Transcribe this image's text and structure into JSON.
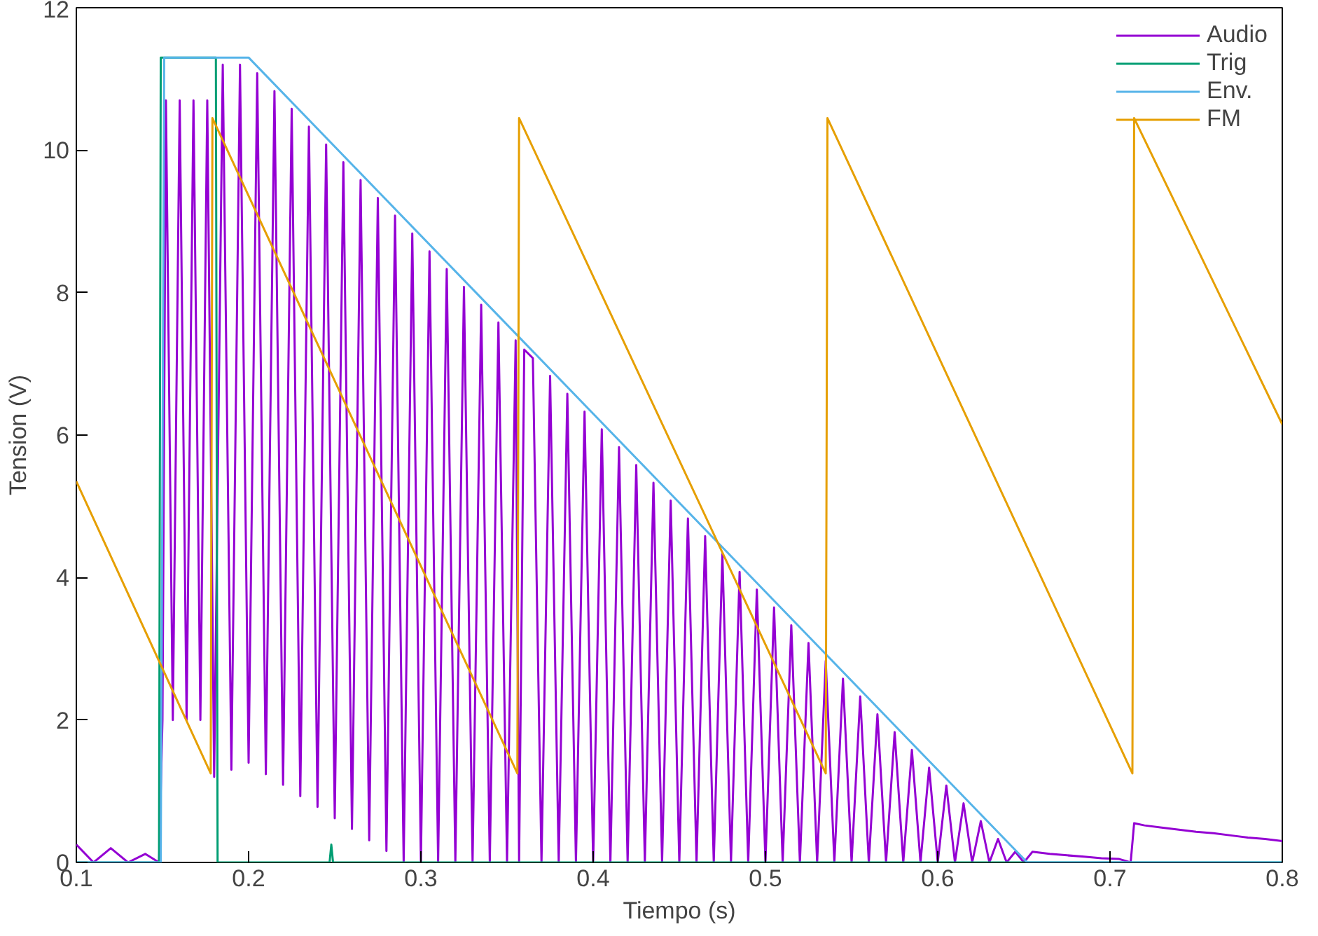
{
  "chart_data": {
    "type": "line",
    "xlabel": "Tiempo (s)",
    "ylabel": "Tension (V)",
    "xlim": [
      0.1,
      0.8
    ],
    "ylim": [
      0,
      12
    ],
    "xticks": [
      0.1,
      0.2,
      0.3,
      0.4,
      0.5,
      0.6,
      0.7,
      0.8
    ],
    "yticks": [
      0,
      2,
      4,
      6,
      8,
      10,
      12
    ],
    "grid": false,
    "legend": "top right",
    "marker": "none",
    "line_style": "solid",
    "series": [
      {
        "name": "Audio",
        "color": "#9400d3",
        "x": [
          0.1,
          0.11,
          0.12,
          0.13,
          0.14,
          0.148,
          0.15,
          0.152,
          0.156,
          0.16,
          0.164,
          0.168,
          0.172,
          0.176,
          0.18,
          0.185,
          0.19,
          0.195,
          0.2,
          0.205,
          0.21,
          0.215,
          0.22,
          0.225,
          0.23,
          0.235,
          0.24,
          0.245,
          0.25,
          0.255,
          0.26,
          0.265,
          0.27,
          0.275,
          0.28,
          0.285,
          0.29,
          0.295,
          0.3,
          0.305,
          0.31,
          0.315,
          0.32,
          0.325,
          0.33,
          0.335,
          0.34,
          0.345,
          0.35,
          0.355,
          0.357,
          0.36,
          0.365,
          0.37,
          0.375,
          0.38,
          0.385,
          0.39,
          0.395,
          0.4,
          0.405,
          0.41,
          0.415,
          0.42,
          0.425,
          0.43,
          0.435,
          0.44,
          0.445,
          0.45,
          0.455,
          0.46,
          0.465,
          0.47,
          0.475,
          0.48,
          0.485,
          0.49,
          0.495,
          0.5,
          0.505,
          0.51,
          0.515,
          0.52,
          0.525,
          0.53,
          0.535,
          0.54,
          0.545,
          0.55,
          0.555,
          0.56,
          0.565,
          0.57,
          0.575,
          0.58,
          0.585,
          0.59,
          0.595,
          0.6,
          0.605,
          0.61,
          0.615,
          0.62,
          0.625,
          0.63,
          0.635,
          0.64,
          0.645,
          0.65,
          0.655,
          0.665,
          0.675,
          0.685,
          0.695,
          0.705,
          0.712,
          0.714,
          0.72,
          0.73,
          0.74,
          0.75,
          0.76,
          0.77,
          0.78,
          0.79,
          0.8
        ],
        "values": [
          0.25,
          0,
          0.2,
          0,
          0.12,
          0,
          2.0,
          10.7,
          2.0,
          10.7,
          2.0,
          10.7,
          2.0,
          10.7,
          1.2,
          11.2,
          1.3,
          11.2,
          1.4,
          11.08,
          1.24,
          10.83,
          1.09,
          10.58,
          0.93,
          10.33,
          0.78,
          10.08,
          0.62,
          9.83,
          0.47,
          9.58,
          0.31,
          9.33,
          0.16,
          9.08,
          0,
          8.83,
          0,
          8.58,
          0,
          8.33,
          0,
          8.08,
          0,
          7.83,
          0,
          7.58,
          0,
          7.33,
          0,
          7.2,
          7.08,
          0,
          6.83,
          0,
          6.58,
          0,
          6.33,
          0,
          6.08,
          0,
          5.83,
          0,
          5.58,
          0,
          5.33,
          0,
          5.08,
          0,
          4.83,
          0,
          4.58,
          0,
          4.33,
          0,
          4.08,
          0,
          3.83,
          0,
          3.58,
          0,
          3.33,
          0,
          3.08,
          0,
          2.83,
          0,
          2.58,
          0,
          2.33,
          0,
          2.08,
          0,
          1.83,
          0,
          1.58,
          0,
          1.33,
          0,
          1.08,
          0,
          0.83,
          0,
          0.58,
          0,
          0.33,
          0,
          0.15,
          0,
          0.15,
          0.12,
          0.1,
          0.08,
          0.06,
          0.05,
          0,
          0.55,
          0.52,
          0.49,
          0.46,
          0.43,
          0.41,
          0.38,
          0.35,
          0.33,
          0.3
        ]
      },
      {
        "name": "Trig",
        "color": "#009e73",
        "x": [
          0.1,
          0.148,
          0.149,
          0.181,
          0.182,
          0.247,
          0.248,
          0.249,
          0.8
        ],
        "values": [
          0,
          0,
          11.3,
          11.3,
          0,
          0,
          0.25,
          0,
          0
        ]
      },
      {
        "name": "Env.",
        "color": "#56b4e9",
        "x": [
          0.1,
          0.149,
          0.151,
          0.2,
          0.652,
          0.8
        ],
        "values": [
          0,
          0,
          11.3,
          11.3,
          0,
          0
        ]
      },
      {
        "name": "FM",
        "color": "#e69f00",
        "x": [
          0.1,
          0.178,
          0.179,
          0.356,
          0.357,
          0.535,
          0.536,
          0.713,
          0.714,
          0.8
        ],
        "values": [
          5.35,
          1.25,
          10.45,
          1.25,
          10.45,
          1.25,
          10.45,
          1.25,
          10.45,
          6.15
        ]
      }
    ]
  }
}
